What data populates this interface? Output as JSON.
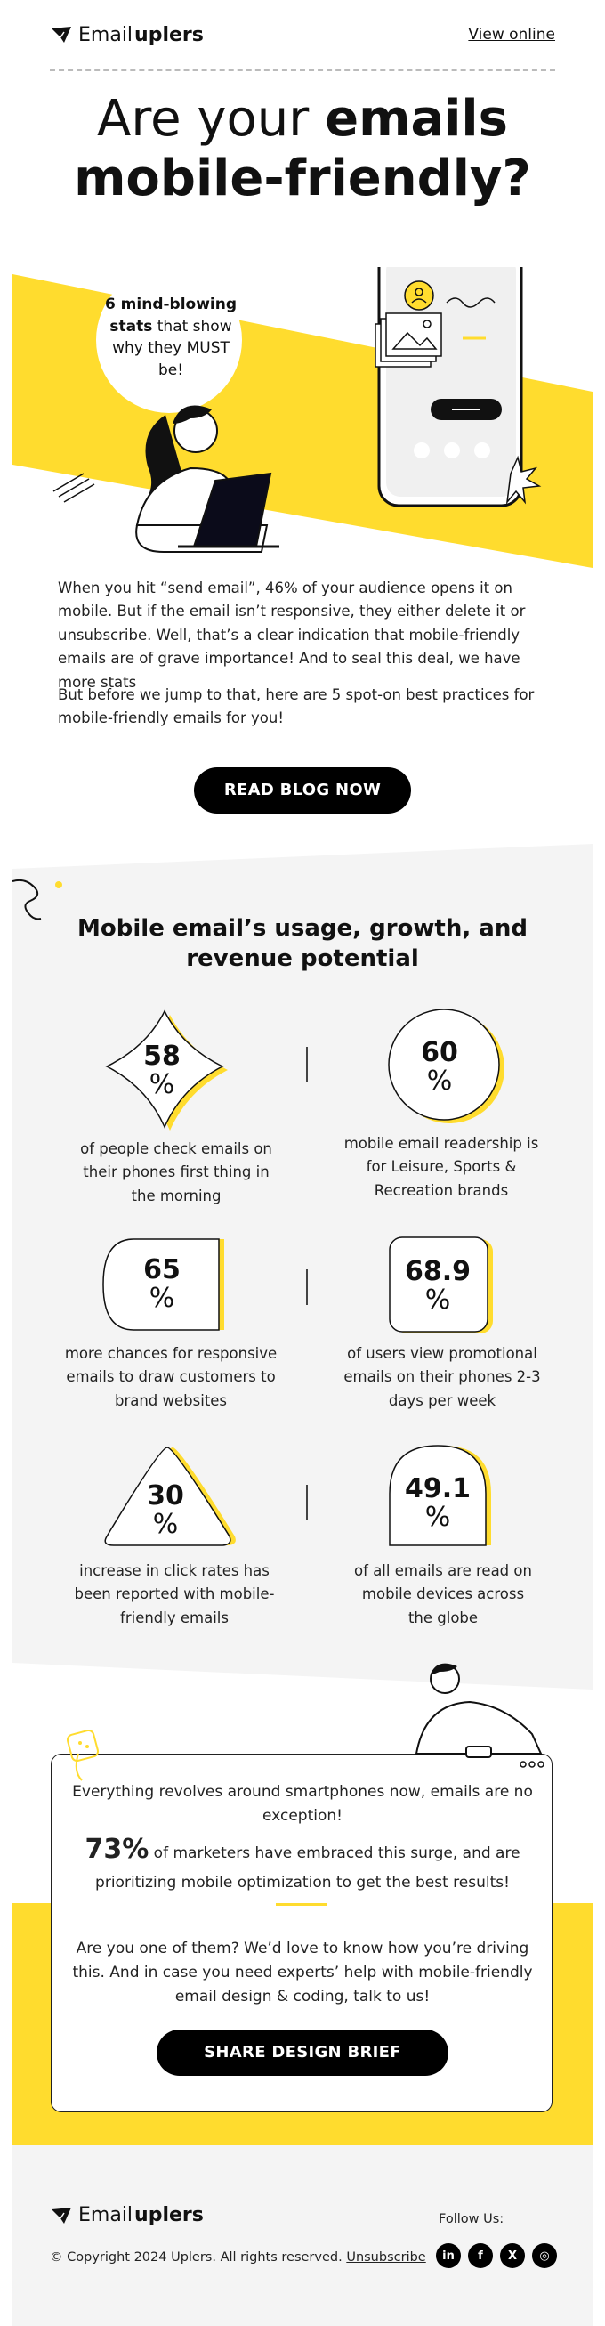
{
  "header": {
    "brand_regular": "Email",
    "brand_bold": "uplers",
    "view_online": "View online"
  },
  "hero": {
    "title_regular": "Are your ",
    "title_bold_1": "emails",
    "title_bold_2": "mobile-friendly?",
    "bubble_bold": "6 mind-blowing stats",
    "bubble_rest": " that show why they MUST be!"
  },
  "intro": {
    "para1": "When you hit “send email”, 46% of your audience opens it on mobile. But if the email isn’t responsive, they either delete it or unsubscribe. Well, that’s a clear indication that mobile-friendly emails are of grave importance! And to seal this deal, we have more stats",
    "para2": "But before we jump to that, here are 5 spot-on best practices for mobile-friendly emails for you!",
    "cta": "READ BLOG NOW"
  },
  "stats": {
    "title": "Mobile email’s usage, growth, and revenue potential",
    "items": [
      {
        "value": "58",
        "unit": "%",
        "caption": "of people check emails on their phones first thing in the morning"
      },
      {
        "value": "60",
        "unit": "%",
        "caption": "mobile email readership is for Leisure, Sports & Recreation brands"
      },
      {
        "value": "65",
        "unit": "%",
        "caption": "more chances for responsive emails to draw customers to brand websites"
      },
      {
        "value": "68.9",
        "unit": "%",
        "caption": "of users view promotional emails on their phones 2-3 days per week"
      },
      {
        "value": "30",
        "unit": "%",
        "caption": "increase in click rates has been reported with mobile-friendly emails"
      },
      {
        "value": "49.1",
        "unit": "%",
        "caption": "of all emails are read on mobile devices across the globe"
      }
    ]
  },
  "card": {
    "line1": "Everything revolves around smartphones now, emails are no exception!",
    "big": "73%",
    "line2": " of marketers have embraced this surge, and are prioritizing mobile optimization to get the best results!",
    "line3": "Are you one of them? We’d love to know how you’re driving this. And in case you need experts’ help with mobile-friendly email design & coding, talk to us!",
    "cta": "SHARE DESIGN BRIEF"
  },
  "footer": {
    "brand_regular": "Email",
    "brand_bold": "uplers",
    "copyright": "© Copyright 2024 Uplers. All rights reserved.",
    "unsubscribe": "Unsubscribe",
    "follow": "Follow Us:",
    "socials": [
      {
        "icon": "linkedin-icon",
        "glyph": "in"
      },
      {
        "icon": "facebook-icon",
        "glyph": "f"
      },
      {
        "icon": "x-icon",
        "glyph": "X"
      },
      {
        "icon": "instagram-icon",
        "glyph": "◎"
      }
    ]
  },
  "colors": {
    "accent": "#ffdc2e",
    "section_bg": "#f4f4f4",
    "button": "#000000"
  }
}
